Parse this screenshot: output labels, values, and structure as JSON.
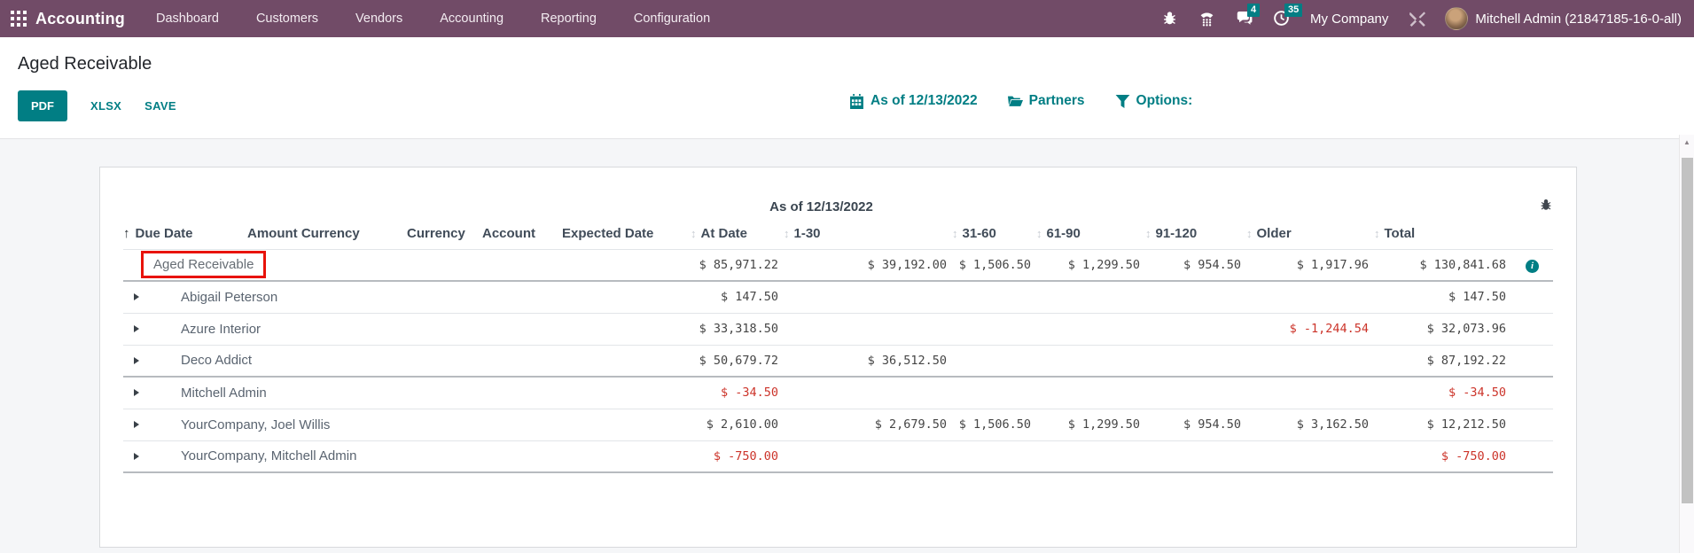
{
  "nav": {
    "brand": "Accounting",
    "menu": [
      "Dashboard",
      "Customers",
      "Vendors",
      "Accounting",
      "Reporting",
      "Configuration"
    ],
    "messages_badge": "4",
    "activities_badge": "35",
    "company": "My Company",
    "user": "Mitchell Admin (21847185-16-0-all)"
  },
  "header": {
    "title": "Aged Receivable",
    "buttons": {
      "pdf": "PDF",
      "xlsx": "XLSX",
      "save": "SAVE"
    },
    "filters": {
      "date": "As of 12/13/2022",
      "partners": "Partners",
      "options": "Options:"
    }
  },
  "report": {
    "group_header": "As of 12/13/2022",
    "columns": [
      "Due Date",
      "Amount Currency",
      "Currency",
      "Account",
      "Expected Date",
      "At Date",
      "1-30",
      "31-60",
      "61-90",
      "91-120",
      "Older",
      "Total"
    ],
    "total_row": {
      "label": "Aged Receivable",
      "at_date": "$ 85,971.22",
      "c1_30": "$ 39,192.00",
      "c31_60": "$ 1,506.50",
      "c61_90": "$ 1,299.50",
      "c91_120": "$ 954.50",
      "older": "$ 1,917.96",
      "total": "$ 130,841.68"
    },
    "rows": [
      {
        "name": "Abigail Peterson",
        "thick": false,
        "cells": [
          "$ 147.50",
          "",
          "",
          "",
          "",
          "",
          "$ 147.50"
        ]
      },
      {
        "name": "Azure Interior",
        "thick": false,
        "cells": [
          "$ 33,318.50",
          "",
          "",
          "",
          "",
          "$ -1,244.54",
          "$ 32,073.96"
        ]
      },
      {
        "name": "Deco Addict",
        "thick": true,
        "cells": [
          "$ 50,679.72",
          "$ 36,512.50",
          "",
          "",
          "",
          "",
          "$ 87,192.22"
        ]
      },
      {
        "name": "Mitchell Admin",
        "thick": false,
        "cells": [
          "$ -34.50",
          "",
          "",
          "",
          "",
          "",
          "$ -34.50"
        ]
      },
      {
        "name": "YourCompany, Joel Willis",
        "thick": false,
        "cells": [
          "$ 2,610.00",
          "$ 2,679.50",
          "$ 1,506.50",
          "$ 1,299.50",
          "$ 954.50",
          "$ 3,162.50",
          "$ 12,212.50"
        ]
      },
      {
        "name": "YourCompany, Mitchell Admin",
        "thick": true,
        "cells": [
          "$ -750.00",
          "",
          "",
          "",
          "",
          "",
          "$ -750.00"
        ]
      }
    ]
  },
  "icons": {
    "sort_asc": "↑",
    "sort_both": "↕",
    "info": "i",
    "scroll_up": "▲",
    "named": [
      "apps-grid-icon",
      "bug-icon",
      "phone-icon",
      "chat-icon",
      "clock-icon",
      "tools-icon",
      "calendar-icon",
      "folder-icon",
      "funnel-icon",
      "caret-right-icon"
    ]
  },
  "colors": {
    "nav_bg": "#714B67",
    "accent_teal": "#017E84",
    "negative_red": "#CC342A",
    "annotation_red": "#E81309",
    "content_bg": "#F5F6F8"
  }
}
